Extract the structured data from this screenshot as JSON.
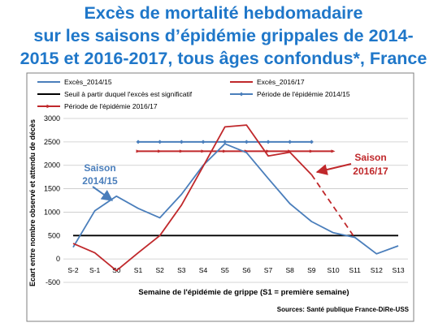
{
  "title_lines": [
    "Excès de mortalité hebdomadaire",
    "sur les saisons d’épidémie grippales de 2014-",
    "2015 et 2016-2017, tous âges confondus*, France"
  ],
  "colors": {
    "title": "#1f77c9",
    "blue": "#4a7ebb",
    "red": "#c0282b",
    "black": "#000000",
    "grid": "#c8c8c8"
  },
  "chart_data": {
    "type": "line",
    "categories": [
      "S-2",
      "S-1",
      "S0",
      "S1",
      "S2",
      "S3",
      "S4",
      "S5",
      "S6",
      "S7",
      "S8",
      "S9",
      "S10",
      "S11",
      "S12",
      "S13"
    ],
    "ylabel": "Ecart entre nombre observé et attendu de décès",
    "xlabel": "Semaine de l'épidémie de grippe (S1 = première semaine)",
    "ylim": [
      -500,
      3000
    ],
    "yticks": [
      -500,
      0,
      500,
      1000,
      1500,
      2000,
      2500,
      3000
    ],
    "grid": true,
    "series": [
      {
        "name": "Excès_2014/15",
        "values": [
          250,
          1030,
          1340,
          1080,
          880,
          1380,
          2000,
          2460,
          2270,
          1720,
          1180,
          800,
          560,
          460,
          110,
          280
        ]
      },
      {
        "name": "Excès_2016/17",
        "values": [
          330,
          130,
          -250,
          130,
          500,
          1150,
          1980,
          2820,
          2860,
          2200,
          2280,
          1800,
          null,
          null,
          null,
          null
        ],
        "dashed_continuation": [
          [
            11,
            1800
          ],
          [
            13,
            450
          ]
        ]
      },
      {
        "name": "Seuil à partir duquel l'excès est significatif",
        "values": [
          500,
          500,
          500,
          500,
          500,
          500,
          500,
          500,
          500,
          500,
          500,
          500,
          500,
          500,
          500,
          500
        ]
      },
      {
        "name": "Période de l'épidémie 2014/15",
        "values": [
          null,
          null,
          null,
          2500,
          2500,
          2500,
          2500,
          2500,
          2500,
          2500,
          2500,
          2500,
          null,
          null,
          null,
          null
        ]
      },
      {
        "name": "Période de l'épidémie 2016/17",
        "values": [
          null,
          null,
          null,
          2300,
          2300,
          2300,
          2300,
          2300,
          2300,
          2300,
          2300,
          2300,
          2300,
          null,
          null,
          null
        ]
      }
    ],
    "annotations": [
      {
        "lines": [
          "Saison",
          "2014/15"
        ],
        "color": "#4a7ebb"
      },
      {
        "lines": [
          "Saison",
          "2016/17"
        ],
        "color": "#c0282b"
      }
    ],
    "source": "Sources: Santé publique France-DiRe-USS"
  }
}
